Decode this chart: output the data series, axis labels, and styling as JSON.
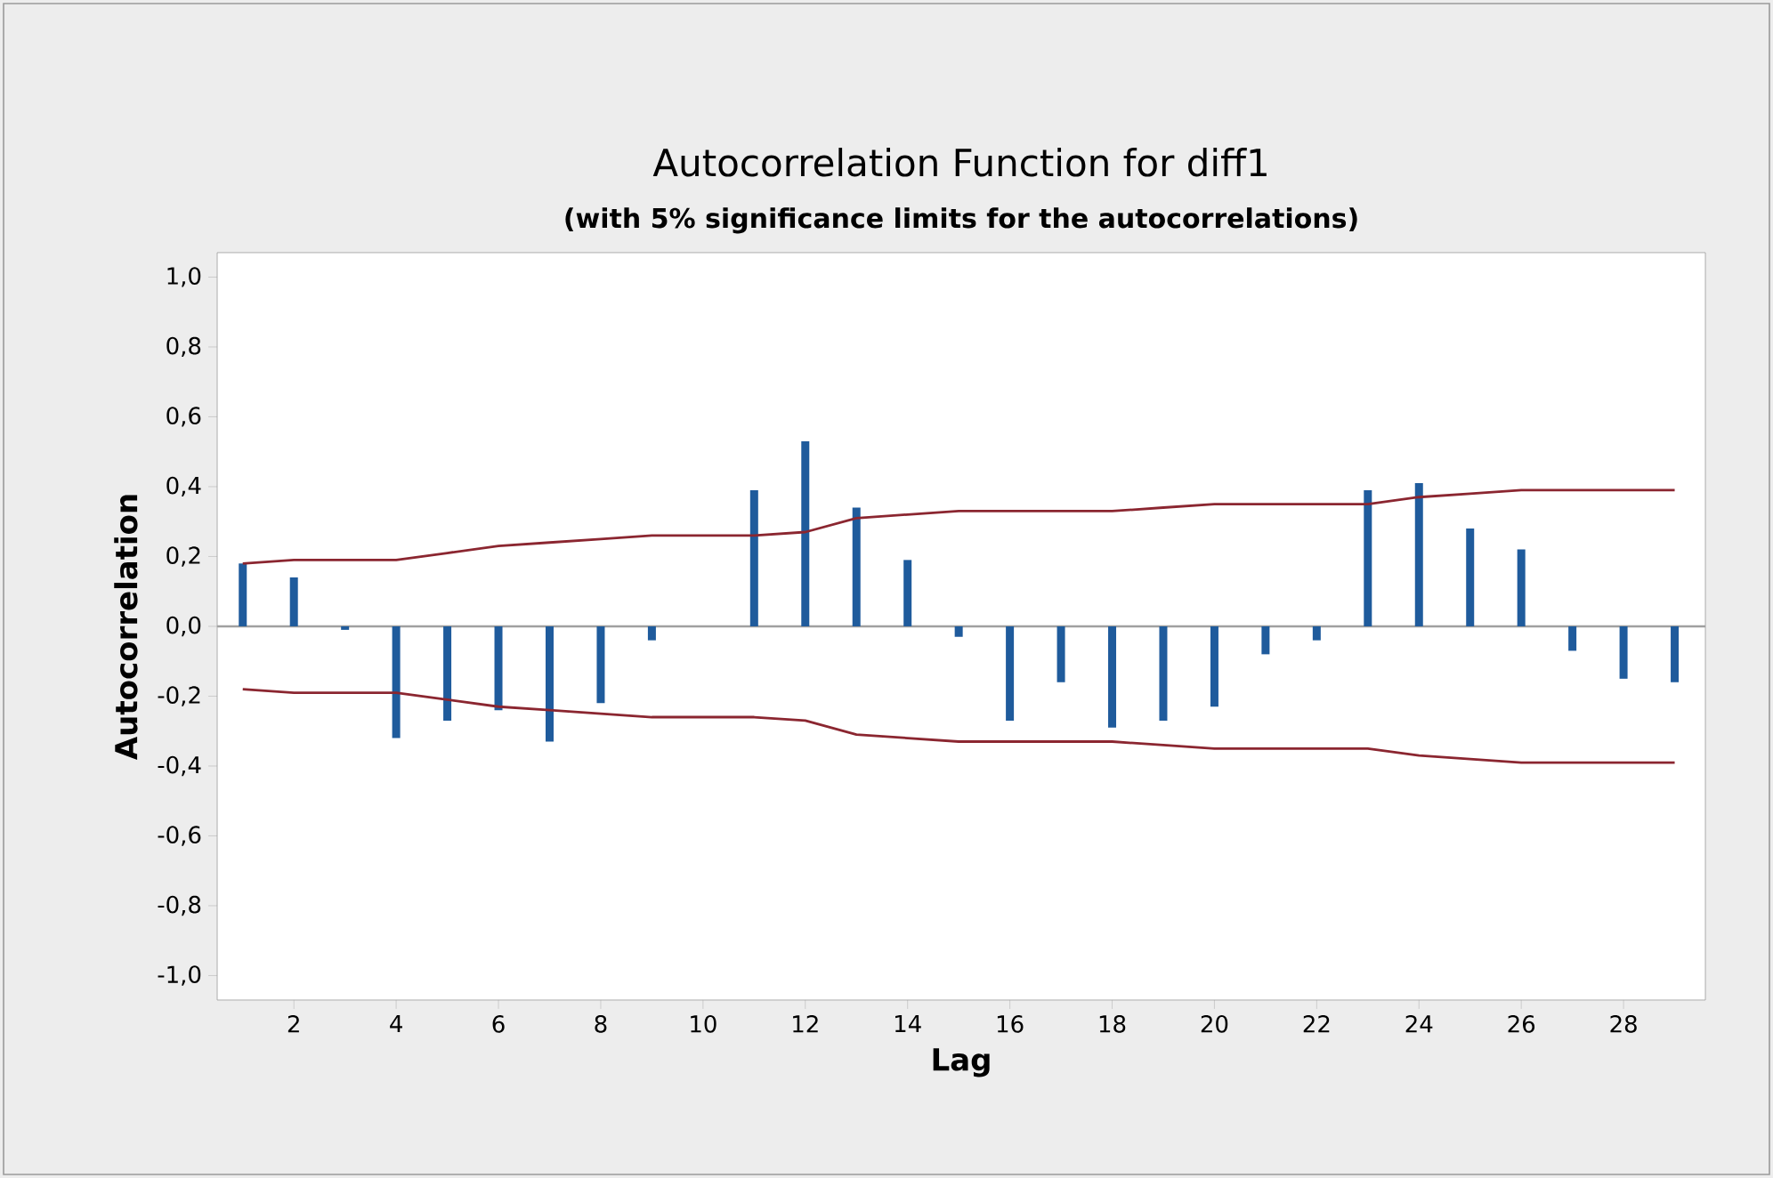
{
  "chart_data": {
    "type": "bar",
    "title": "Autocorrelation Function for diff1",
    "subtitle": "(with 5% significance limits for the autocorrelations)",
    "xlabel": "Lag",
    "ylabel": "Autocorrelation",
    "x": [
      1,
      2,
      3,
      4,
      5,
      6,
      7,
      8,
      9,
      10,
      11,
      12,
      13,
      14,
      15,
      16,
      17,
      18,
      19,
      20,
      21,
      22,
      23,
      24,
      25,
      26,
      27,
      28,
      29
    ],
    "series": [
      {
        "color": "#1f5b9c",
        "values": [
          0.18,
          0.14,
          -0.01,
          -0.32,
          -0.27,
          -0.24,
          -0.33,
          -0.22,
          -0.04,
          0,
          0.39,
          0.53,
          0.34,
          0.19,
          -0.03,
          -0.27,
          -0.16,
          -0.29,
          -0.27,
          -0.23,
          -0.08,
          -0.04,
          0.39,
          0.41,
          0.28,
          0.22,
          -0.07,
          -0.15,
          -0.16
        ]
      },
      {
        "type": "line",
        "color": "#8b2630",
        "values": [
          0.18,
          0.19,
          0.19,
          0.19,
          0.21,
          0.23,
          0.24,
          0.25,
          0.26,
          0.26,
          0.26,
          0.27,
          0.31,
          0.32,
          0.33,
          0.33,
          0.33,
          0.33,
          0.34,
          0.35,
          0.35,
          0.35,
          0.35,
          0.37,
          0.38,
          0.39,
          0.39,
          0.39,
          0.39
        ]
      },
      {
        "type": "line",
        "color": "#8b2630",
        "values": [
          -0.18,
          -0.19,
          -0.19,
          -0.19,
          -0.21,
          -0.23,
          -0.24,
          -0.25,
          -0.26,
          -0.26,
          -0.26,
          -0.27,
          -0.31,
          -0.32,
          -0.33,
          -0.33,
          -0.33,
          -0.33,
          -0.34,
          -0.35,
          -0.35,
          -0.35,
          -0.35,
          -0.37,
          -0.38,
          -0.39,
          -0.39,
          -0.39,
          -0.39
        ]
      }
    ],
    "xlim": [
      0.5,
      29.6
    ],
    "ylim": [
      -1.07,
      1.07
    ],
    "xticks": [
      2,
      4,
      6,
      8,
      10,
      12,
      14,
      16,
      18,
      20,
      22,
      24,
      26,
      28
    ],
    "yticks": [
      {
        "value": -1,
        "label": "-1,0"
      },
      {
        "value": -0.8,
        "label": "-0,8"
      },
      {
        "value": -0.6,
        "label": "-0,6"
      },
      {
        "value": -0.4,
        "label": "-0,4"
      },
      {
        "value": -0.2,
        "label": "-0,2"
      },
      {
        "value": 0,
        "label": "0,0"
      },
      {
        "value": 0.2,
        "label": "0,2"
      },
      {
        "value": 0.4,
        "label": "0,4"
      },
      {
        "value": 0.6,
        "label": "0,6"
      },
      {
        "value": 0.8,
        "label": "0,8"
      },
      {
        "value": 1,
        "label": "1,0"
      }
    ],
    "ref_lines": [
      {
        "axis": "y",
        "value": 0,
        "color": "#a0a0a0"
      }
    ]
  }
}
